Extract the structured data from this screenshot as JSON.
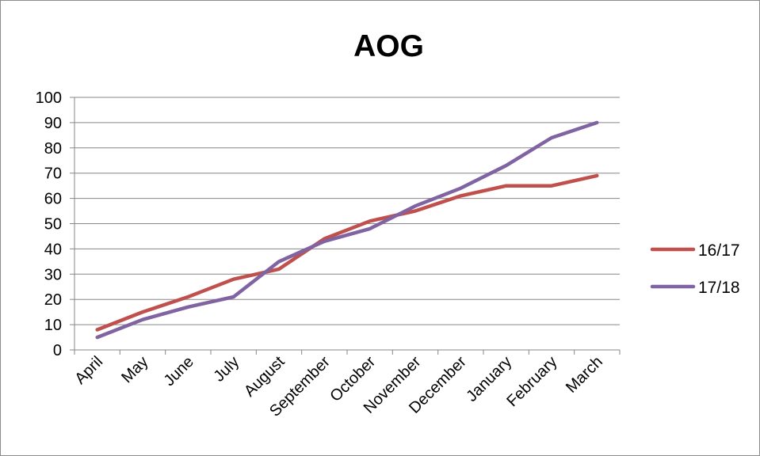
{
  "chart_data": {
    "type": "line",
    "title": "AOG",
    "xlabel": "",
    "ylabel": "",
    "categories": [
      "April",
      "May",
      "June",
      "July",
      "August",
      "September",
      "October",
      "November",
      "December",
      "January",
      "February",
      "March"
    ],
    "ylim": [
      0,
      100
    ],
    "yticks": [
      "0",
      "10",
      "20",
      "30",
      "40",
      "50",
      "60",
      "70",
      "80",
      "90",
      "100"
    ],
    "grid": true,
    "legend_position": "right",
    "series": [
      {
        "name": "16/17",
        "color": "#C0504D",
        "values": [
          8,
          15,
          21,
          28,
          32,
          44,
          51,
          55,
          61,
          65,
          65,
          69
        ]
      },
      {
        "name": "17/18",
        "color": "#8064A2",
        "values": [
          5,
          12,
          17,
          21,
          35,
          43,
          48,
          57,
          64,
          73,
          84,
          90
        ]
      }
    ]
  }
}
